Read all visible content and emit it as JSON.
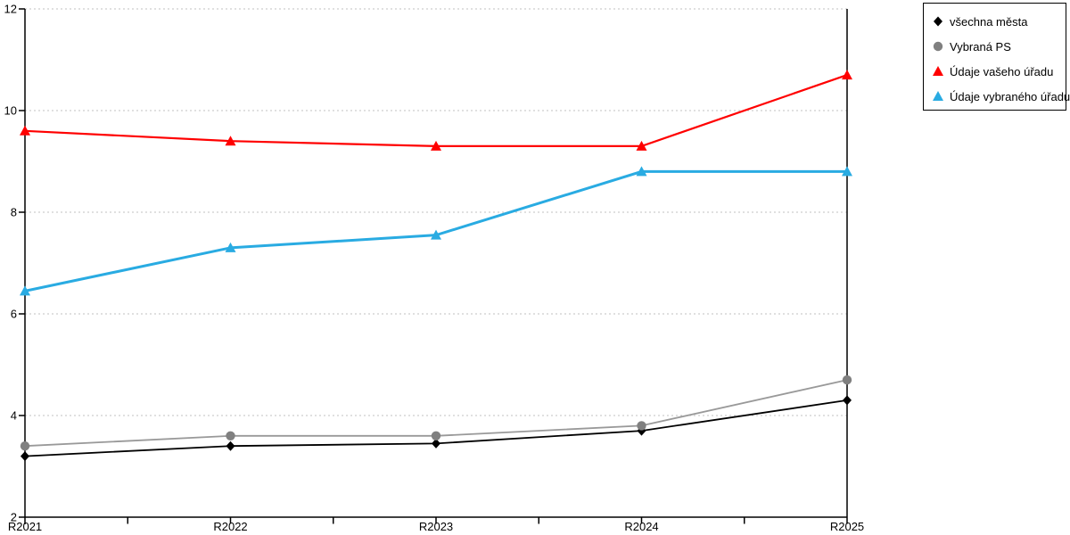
{
  "chart_data": {
    "type": "line",
    "title": "",
    "xlabel": "",
    "ylabel": "",
    "categories": [
      "R2021",
      "R2022",
      "R2023",
      "R2024",
      "R2025"
    ],
    "series": [
      {
        "name": "všechna města",
        "marker": "diamond",
        "color": "#000000",
        "line_color": "#000000",
        "line_width": 1.8,
        "values": [
          3.2,
          3.4,
          3.45,
          3.7,
          4.3
        ]
      },
      {
        "name": "Vybraná PS",
        "marker": "circle",
        "color": "#808080",
        "line_color": "#999999",
        "line_width": 1.8,
        "values": [
          3.4,
          3.6,
          3.6,
          3.8,
          4.7
        ]
      },
      {
        "name": "Údaje vašeho úřadu",
        "marker": "triangle",
        "color": "#FF0000",
        "line_color": "#FF0000",
        "line_width": 2.2,
        "values": [
          9.6,
          9.4,
          9.3,
          9.3,
          10.7
        ]
      },
      {
        "name": "Údaje vybraného úřadu",
        "marker": "triangle",
        "color": "#29ABE2",
        "line_color": "#29ABE2",
        "line_width": 3,
        "values": [
          6.45,
          7.3,
          7.55,
          8.8,
          8.8
        ]
      }
    ],
    "ylim": [
      2,
      12
    ],
    "y_ticks": [
      2,
      4,
      6,
      8,
      10,
      12
    ],
    "grid": "horizontal-dotted",
    "legend_position": "top-right",
    "colors": {
      "background": "#FFFFFF",
      "gridline": "#C0C0C0",
      "axis": "#000000",
      "tick_label": "#000000"
    }
  }
}
